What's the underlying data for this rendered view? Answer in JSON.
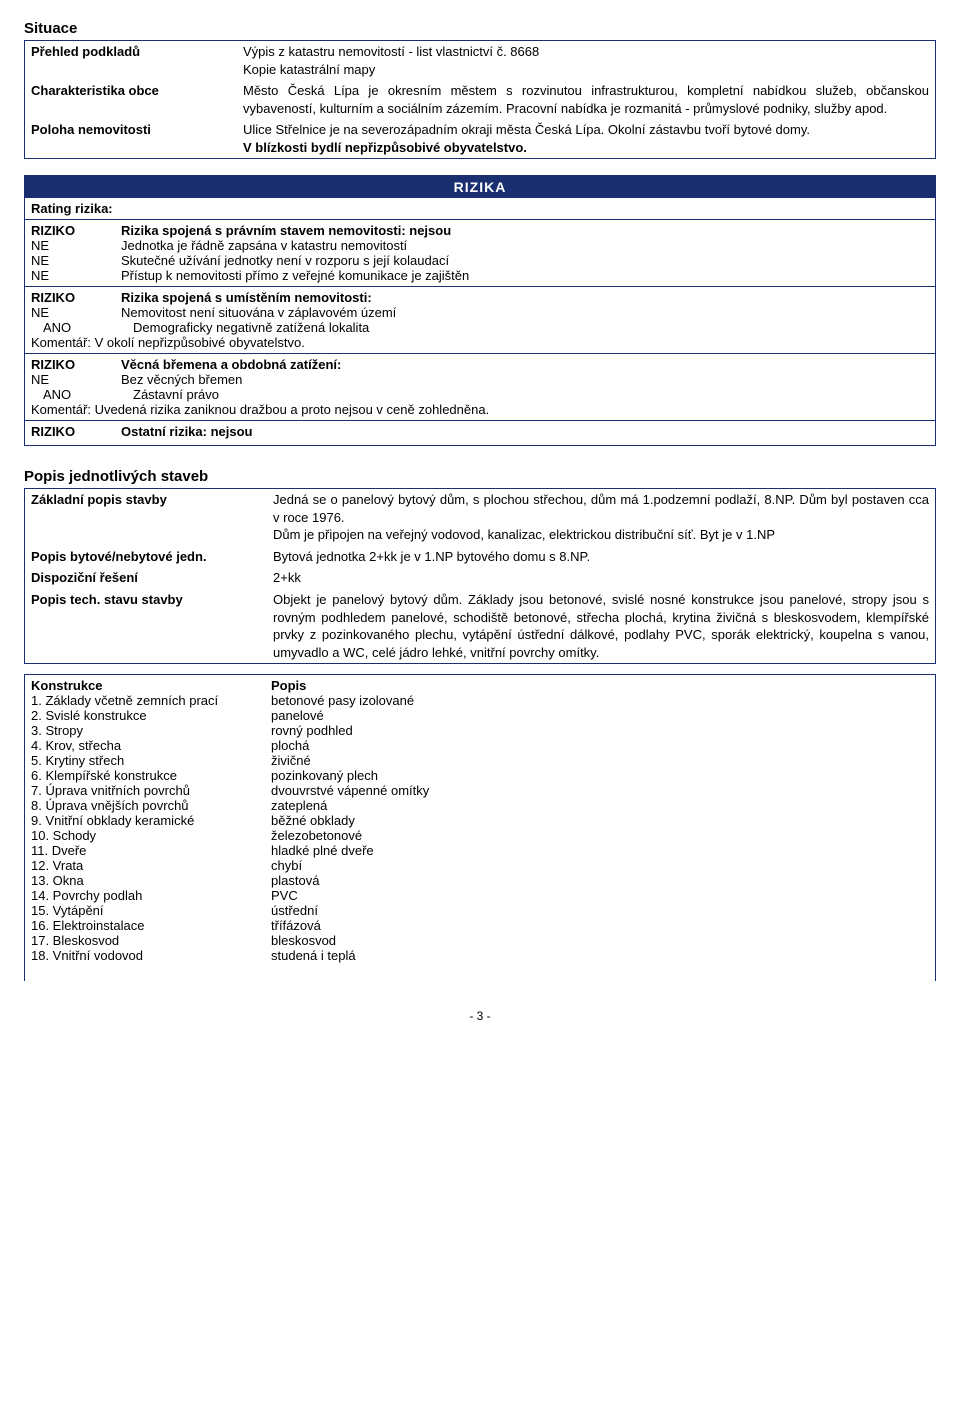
{
  "situace": {
    "title": "Situace",
    "rows": [
      {
        "label": "Přehled podkladů",
        "value": "Výpis z katastru nemovitostí - list vlastnictví č. 8668\nKopie katastrální mapy"
      },
      {
        "label": "Charakteristika obce",
        "value": "Město Česká Lípa je okresním městem s rozvinutou infrastrukturou, kompletní nabídkou služeb, občanskou vybaveností, kulturním a sociálním zázemím.  Pracovní nabídka je rozmanitá - průmyslové podniky, služby apod."
      },
      {
        "label": "Poloha nemovitosti",
        "value": "Ulice Střelnice je na severozápadním okraji města Česká Lípa. Okolní zástavbu tvoří bytové domy.\nV blízkosti bydlí nepřizpůsobivé obyvatelstvo.",
        "lastBold": "V blízkosti bydlí nepřizpůsobivé obyvatelstvo."
      }
    ]
  },
  "rizika": {
    "header": "RIZIKA",
    "rating": "Rating rizika:",
    "groups": [
      {
        "head": [
          "RIZIKO",
          "Rizika spojená s právním stavem nemovitosti: nejsou"
        ],
        "items": [
          [
            "NE",
            "Jednotka je řádně zapsána v katastru nemovitostí"
          ],
          [
            "NE",
            "Skutečné užívání jednotky není v rozporu s její kolaudací"
          ],
          [
            "NE",
            "Přístup k nemovitosti přímo z veřejné komunikace je zajištěn"
          ]
        ]
      },
      {
        "head": [
          "RIZIKO",
          "Rizika spojená s umístěním nemovitosti:"
        ],
        "items": [
          [
            "NE",
            "Nemovitost není situována v záplavovém území"
          ],
          [
            "ANO",
            "Demograficky negativně zatížená lokalita"
          ]
        ],
        "comment": "Komentář: V okolí nepřizpůsobivé obyvatelstvo."
      },
      {
        "head": [
          "RIZIKO",
          "Věcná břemena a obdobná zatížení:"
        ],
        "items": [
          [
            "NE",
            "Bez věcných břemen"
          ],
          [
            "ANO",
            "Zástavní právo"
          ]
        ],
        "comment": "Komentář: Uvedená rizika zaniknou dražbou a proto nejsou v ceně zohledněna."
      },
      {
        "head": [
          "RIZIKO",
          "Ostatní rizika: nejsou"
        ],
        "items": []
      }
    ]
  },
  "popis": {
    "title": "Popis jednotlivých staveb",
    "rows": [
      {
        "label": "Základní popis stavby",
        "value": "Jedná se o panelový bytový dům, s plochou střechou, dům má 1.podzemní podlaží, 8.NP. Dům byl postaven cca v roce 1976.\nDům je připojen na veřejný vodovod, kanalizac, elektrickou distribuční síť. Byt je v 1.NP"
      },
      {
        "label": "Popis bytové/nebytové jedn.",
        "value": "Bytová jednotka 2+kk je v 1.NP bytového domu s 8.NP."
      },
      {
        "label": "Dispoziční řešení",
        "value": "2+kk"
      },
      {
        "label": "Popis tech. stavu stavby",
        "value": "Objekt je panelový bytový dům. Základy jsou betonové, svislé nosné konstrukce jsou panelové, stropy jsou s rovným podhledem panelové, schodiště betonové, střecha plochá, krytina živičná s bleskosvodem, klempířské prvky z pozinkovaného plechu, vytápění ústřední dálkové, podlahy PVC, sporák elektrický, koupelna s vanou, umyvadlo a  WC, celé jádro lehké, vnitřní povrchy omítky."
      }
    ]
  },
  "konstrukce": {
    "head": [
      "Konstrukce",
      "Popis"
    ],
    "rows": [
      [
        "1. Základy včetně zemních prací",
        "betonové pasy izolované"
      ],
      [
        "2. Svislé konstrukce",
        "panelové"
      ],
      [
        "3. Stropy",
        "rovný podhled"
      ],
      [
        "4. Krov, střecha",
        "plochá"
      ],
      [
        "5. Krytiny střech",
        "živičné"
      ],
      [
        "6. Klempířské konstrukce",
        "pozinkovaný plech"
      ],
      [
        "7. Úprava vnitřních povrchů",
        "dvouvrstvé vápenné omítky"
      ],
      [
        "8. Úprava vnějších povrchů",
        "zateplená"
      ],
      [
        "9. Vnitřní obklady keramické",
        "běžné obklady"
      ],
      [
        "10. Schody",
        "železobetonové"
      ],
      [
        "11. Dveře",
        "hladké plné dveře"
      ],
      [
        "12. Vrata",
        "chybí"
      ],
      [
        "13. Okna",
        "plastová"
      ],
      [
        "14. Povrchy podlah",
        "PVC"
      ],
      [
        "15. Vytápění",
        "ústřední"
      ],
      [
        "16. Elektroinstalace",
        "třífázová"
      ],
      [
        "17. Bleskosvod",
        "bleskosvod"
      ],
      [
        "18. Vnitřní vodovod",
        "studená i teplá"
      ]
    ]
  },
  "footer": "- 3 -"
}
